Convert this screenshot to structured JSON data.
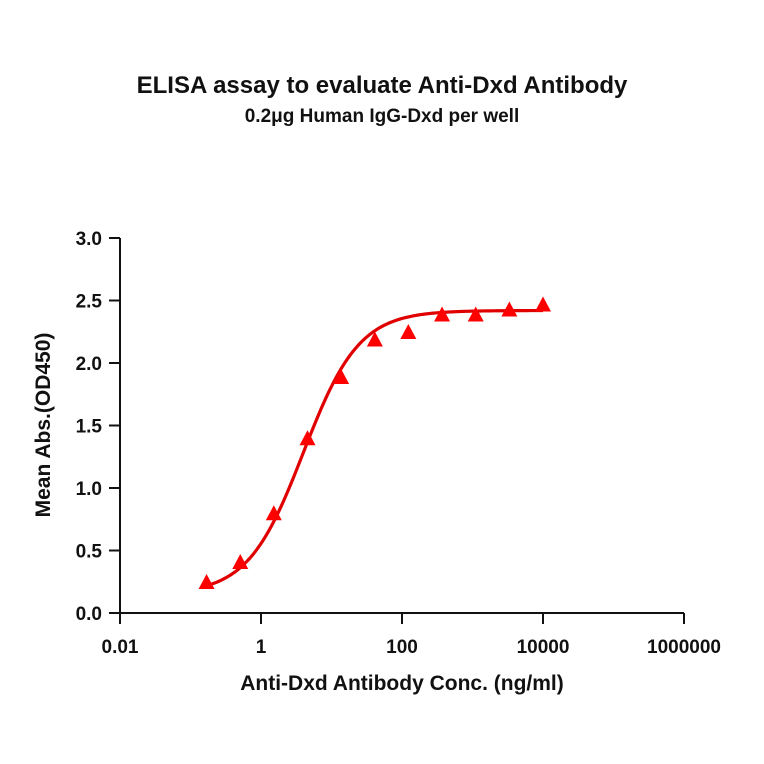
{
  "chart_data": {
    "type": "scatter",
    "title": "ELISA assay to evaluate Anti-Dxd Antibody",
    "subtitle": "0.2μg Human IgG-Dxd per well",
    "xlabel": "Anti-Dxd Antibody Conc. (ng/ml)",
    "ylabel": "Mean Abs.(OD450)",
    "xscale": "log",
    "xlim": [
      0.01,
      1000000
    ],
    "ylim": [
      0.0,
      3.0
    ],
    "x_ticks": [
      {
        "value": 0.01,
        "label": "0.01"
      },
      {
        "value": 1,
        "label": "1"
      },
      {
        "value": 100,
        "label": "100"
      },
      {
        "value": 10000,
        "label": "10000"
      },
      {
        "value": 1000000,
        "label": "1000000"
      }
    ],
    "y_ticks": [
      {
        "value": 0.0,
        "label": "0.0"
      },
      {
        "value": 0.5,
        "label": "0.5"
      },
      {
        "value": 1.0,
        "label": "1.0"
      },
      {
        "value": 1.5,
        "label": "1.5"
      },
      {
        "value": 2.0,
        "label": "2.0"
      },
      {
        "value": 2.5,
        "label": "2.5"
      },
      {
        "value": 3.0,
        "label": "3.0"
      }
    ],
    "grid": false,
    "legend": null,
    "series": [
      {
        "name": "Anti-Dxd Antibody",
        "marker": "triangle",
        "color": "#ff0000",
        "x": [
          0.169,
          0.508,
          1.52,
          4.57,
          13.7,
          41.2,
          123,
          370,
          1111,
          3333,
          10000
        ],
        "y": [
          0.24,
          0.4,
          0.79,
          1.39,
          1.88,
          2.18,
          2.24,
          2.38,
          2.38,
          2.42,
          2.46
        ]
      }
    ],
    "fit": {
      "type": "4PL",
      "color": "#e00000",
      "bottom": 0.15,
      "top": 2.42,
      "ec50": 4.0,
      "hill": 1.1,
      "x_range": [
        0.169,
        10000
      ]
    }
  }
}
